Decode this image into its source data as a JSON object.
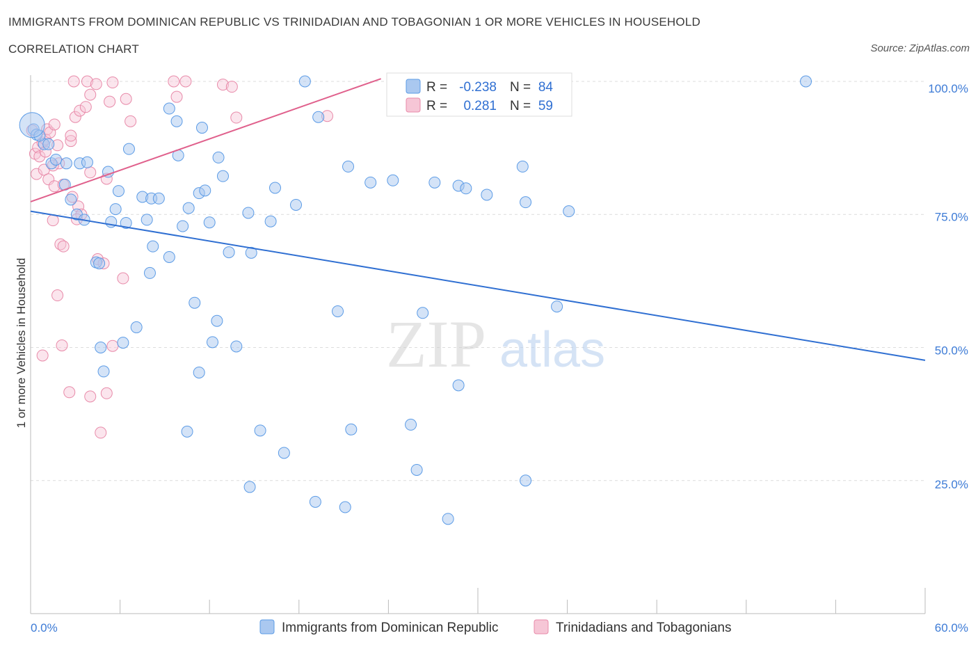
{
  "header": {
    "title": "IMMIGRANTS FROM DOMINICAN REPUBLIC VS TRINIDADIAN AND TOBAGONIAN 1 OR MORE VEHICLES IN HOUSEHOLD",
    "subtitle": "CORRELATION CHART",
    "source": "Source: ZipAtlas.com"
  },
  "colors": {
    "blue": "#5b9be6",
    "blue_fill": "#aac8f0",
    "blue_line": "#2f6fd2",
    "pink": "#e88aa9",
    "pink_fill": "#f6c6d6",
    "pink_line": "#e0608c",
    "axis_label": "#3d7bd6",
    "grid": "#dcdcdc"
  },
  "legend": {
    "r_label": "R =",
    "n_label": "N =",
    "blue": {
      "r": "-0.238",
      "n": "84"
    },
    "pink": {
      "r": "0.281",
      "n": "59"
    }
  },
  "chart_data": {
    "type": "scatter",
    "title": "IMMIGRANTS FROM DOMINICAN REPUBLIC VS TRINIDADIAN AND TOBAGONIAN 1 OR MORE VEHICLES IN HOUSEHOLD",
    "ylabel": "1 or more Vehicles in Household",
    "xlabel": "",
    "xlim": [
      0,
      60
    ],
    "ylim": [
      0,
      103
    ],
    "x_tick_labels": [
      "0.0%",
      "60.0%"
    ],
    "y_tick_labels": [
      "100.0%",
      "75.0%",
      "50.0%",
      "25.0%"
    ],
    "y_ticks": [
      100,
      75,
      50,
      25
    ],
    "grid": true,
    "watermark": "ZIPatlas",
    "series": [
      {
        "name": "Immigrants from Dominican Republic",
        "color": "#5b9be6",
        "trend": {
          "x": [
            0,
            60
          ],
          "y": [
            75.6,
            47.6
          ]
        },
        "points": [
          [
            0.2,
            91.0
          ],
          [
            0.4,
            90.0
          ],
          [
            0.9,
            88.2
          ],
          [
            1.4,
            84.6
          ],
          [
            1.7,
            85.3
          ],
          [
            2.4,
            84.6
          ],
          [
            3.3,
            84.6
          ],
          [
            3.8,
            84.8
          ],
          [
            2.3,
            80.6
          ],
          [
            2.7,
            77.8
          ],
          [
            3.1,
            75.0
          ],
          [
            3.6,
            74.0
          ],
          [
            5.2,
            83.0
          ],
          [
            5.9,
            79.4
          ],
          [
            5.7,
            76.0
          ],
          [
            5.4,
            73.6
          ],
          [
            6.4,
            73.4
          ],
          [
            6.6,
            87.3
          ],
          [
            7.5,
            78.3
          ],
          [
            8.1,
            78.0
          ],
          [
            8.6,
            78.0
          ],
          [
            7.8,
            74.0
          ],
          [
            9.3,
            94.9
          ],
          [
            9.8,
            92.5
          ],
          [
            10.2,
            72.8
          ],
          [
            10.6,
            76.2
          ],
          [
            9.9,
            86.1
          ],
          [
            11.3,
            79.0
          ],
          [
            11.5,
            91.3
          ],
          [
            11.7,
            79.5
          ],
          [
            12.0,
            73.5
          ],
          [
            12.6,
            85.7
          ],
          [
            12.9,
            82.2
          ],
          [
            13.3,
            67.9
          ],
          [
            14.6,
            75.3
          ],
          [
            14.8,
            67.8
          ],
          [
            16.1,
            73.7
          ],
          [
            16.4,
            80.0
          ],
          [
            17.8,
            76.8
          ],
          [
            18.4,
            100.0
          ],
          [
            19.3,
            93.3
          ],
          [
            20.6,
            56.8
          ],
          [
            21.3,
            84.0
          ],
          [
            22.8,
            81.0
          ],
          [
            24.3,
            81.4
          ],
          [
            26.3,
            56.5
          ],
          [
            27.1,
            81.0
          ],
          [
            28.7,
            80.4
          ],
          [
            29.2,
            79.9
          ],
          [
            30.6,
            78.7
          ],
          [
            33.0,
            84.0
          ],
          [
            33.2,
            77.3
          ],
          [
            36.1,
            75.6
          ],
          [
            35.3,
            57.7
          ],
          [
            52.0,
            100.0
          ],
          [
            4.4,
            66.0
          ],
          [
            4.6,
            65.8
          ],
          [
            8.2,
            69.0
          ],
          [
            8.0,
            64.0
          ],
          [
            9.3,
            67.0
          ],
          [
            11.0,
            58.4
          ],
          [
            12.5,
            55.0
          ],
          [
            12.2,
            51.0
          ],
          [
            13.8,
            50.2
          ],
          [
            7.1,
            53.8
          ],
          [
            6.2,
            50.9
          ],
          [
            4.7,
            50.0
          ],
          [
            4.9,
            45.5
          ],
          [
            11.3,
            45.3
          ],
          [
            10.5,
            34.2
          ],
          [
            15.4,
            34.4
          ],
          [
            17.0,
            30.2
          ],
          [
            21.5,
            34.6
          ],
          [
            25.5,
            35.5
          ],
          [
            25.9,
            27.0
          ],
          [
            14.7,
            23.8
          ],
          [
            19.1,
            21.0
          ],
          [
            21.1,
            20.0
          ],
          [
            28.0,
            17.8
          ],
          [
            28.7,
            42.9
          ],
          [
            33.2,
            25.0
          ],
          [
            1.2,
            88.2
          ],
          [
            0.6,
            89.8
          ],
          [
            0.1,
            91.8
          ]
        ]
      },
      {
        "name": "Trinidadians and Tobagonians",
        "color": "#e88aa9",
        "trend": {
          "x": [
            0,
            23.5
          ],
          "y": [
            77.4,
            100.5
          ]
        },
        "points": [
          [
            0.1,
            90.8
          ],
          [
            0.3,
            86.4
          ],
          [
            0.5,
            87.6
          ],
          [
            0.6,
            85.9
          ],
          [
            0.8,
            88.5
          ],
          [
            1.0,
            89.1
          ],
          [
            1.1,
            91.0
          ],
          [
            1.3,
            90.4
          ],
          [
            1.6,
            91.9
          ],
          [
            1.8,
            88.0
          ],
          [
            1.9,
            84.6
          ],
          [
            0.4,
            82.6
          ],
          [
            0.9,
            83.4
          ],
          [
            1.2,
            81.6
          ],
          [
            1.5,
            84.2
          ],
          [
            1.6,
            80.3
          ],
          [
            2.2,
            80.6
          ],
          [
            2.7,
            88.8
          ],
          [
            2.7,
            89.8
          ],
          [
            3.0,
            93.3
          ],
          [
            3.3,
            94.5
          ],
          [
            3.7,
            95.2
          ],
          [
            2.9,
            100.0
          ],
          [
            3.8,
            100.0
          ],
          [
            4.4,
            99.5
          ],
          [
            5.5,
            99.8
          ],
          [
            6.4,
            96.7
          ],
          [
            6.7,
            92.5
          ],
          [
            5.3,
            96.2
          ],
          [
            4.0,
            97.5
          ],
          [
            5.1,
            81.7
          ],
          [
            4.0,
            82.9
          ],
          [
            2.8,
            78.3
          ],
          [
            3.2,
            76.5
          ],
          [
            3.4,
            75.0
          ],
          [
            3.1,
            74.1
          ],
          [
            1.5,
            73.9
          ],
          [
            2.0,
            69.4
          ],
          [
            2.2,
            69.0
          ],
          [
            4.5,
            66.6
          ],
          [
            4.9,
            65.8
          ],
          [
            6.2,
            63.0
          ],
          [
            9.6,
            100.0
          ],
          [
            10.4,
            100.0
          ],
          [
            12.9,
            99.4
          ],
          [
            13.5,
            99.0
          ],
          [
            9.8,
            97.1
          ],
          [
            13.8,
            93.2
          ],
          [
            19.9,
            93.5
          ],
          [
            28.1,
            100.0
          ],
          [
            1.8,
            59.8
          ],
          [
            2.1,
            50.4
          ],
          [
            0.8,
            48.5
          ],
          [
            2.6,
            41.6
          ],
          [
            4.0,
            40.8
          ],
          [
            5.1,
            41.4
          ],
          [
            4.7,
            34.0
          ],
          [
            5.5,
            50.3
          ],
          [
            1.0,
            86.8
          ]
        ]
      }
    ]
  },
  "bottom_legend": {
    "blue_label": "Immigrants from Dominican Republic",
    "pink_label": "Trinidadians and Tobagonians"
  }
}
